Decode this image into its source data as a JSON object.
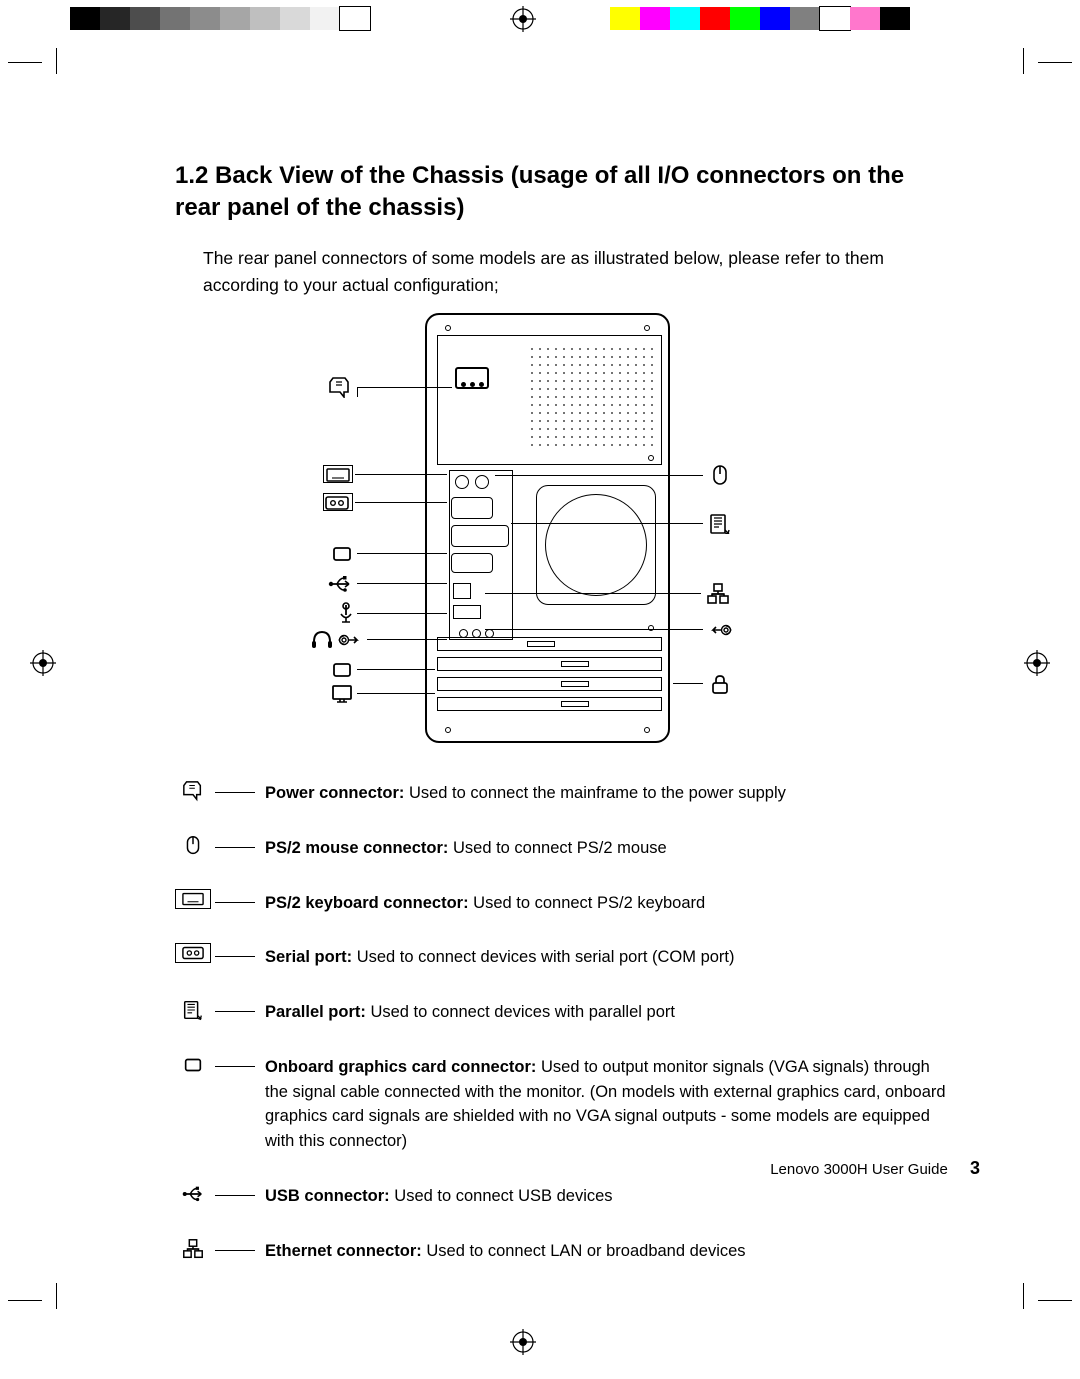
{
  "colors": {
    "gray_bar": [
      "#000000",
      "#262626",
      "#4d4d4d",
      "#737373",
      "#8c8c8c",
      "#a6a6a6",
      "#bfbfbf",
      "#d9d9d9",
      "#f2f2f2",
      "#ffffff"
    ],
    "color_bar": [
      "#ffff00",
      "#ff00ff",
      "#00ffff",
      "#ff0000",
      "#00ff00",
      "#0000ff",
      "#808080",
      "#ffffff",
      "#ff77cc",
      "#000000"
    ]
  },
  "heading": "1.2 Back View of the Chassis (usage of all I/O connectors on the rear panel of the chassis)",
  "intro": "The rear panel connectors of some models are as illustrated below, please refer to them according to your actual configuration;",
  "legend": [
    {
      "icon": "power",
      "label": "Power connector:",
      "desc": " Used to connect the mainframe to the power supply"
    },
    {
      "icon": "mouse",
      "label": "PS/2 mouse connector:",
      "desc": " Used to connect PS/2 mouse"
    },
    {
      "icon": "keyboard",
      "label": "PS/2 keyboard connector:",
      "desc": " Used to connect PS/2 keyboard"
    },
    {
      "icon": "serial",
      "label": "Serial port:",
      "desc": " Used to connect devices with serial port (COM port)"
    },
    {
      "icon": "parallel",
      "label": "Parallel port:",
      "desc": " Used to connect devices with parallel port"
    },
    {
      "icon": "vga",
      "label": "Onboard graphics card connector:",
      "desc": " Used to output monitor signals (VGA signals) through the signal cable connected with the monitor. (On models with external graphics card, onboard graphics card signals are shielded with no VGA signal outputs - some models are equipped with this connector)"
    },
    {
      "icon": "usb",
      "label": "USB connector:",
      "desc": " Used to connect USB devices"
    },
    {
      "icon": "ethernet",
      "label": "Ethernet connector:",
      "desc": " Used to connect LAN or broadband devices"
    }
  ],
  "footer_text": "Lenovo 3000H User Guide",
  "footer_page": "3"
}
